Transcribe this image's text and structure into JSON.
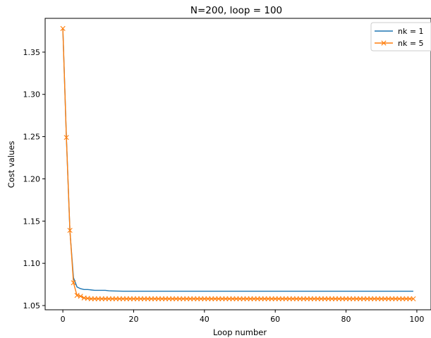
{
  "chart_data": {
    "type": "line",
    "title": "N=200, loop = 100",
    "xlabel": "Loop number",
    "ylabel": "Cost values",
    "xlim": [
      -5,
      104
    ],
    "ylim": [
      1.045,
      1.39
    ],
    "xticks": [
      0,
      20,
      40,
      60,
      80,
      100
    ],
    "xtick_labels": [
      "0",
      "20",
      "40",
      "60",
      "80",
      "100"
    ],
    "yticks": [
      1.05,
      1.1,
      1.15,
      1.2,
      1.25,
      1.3,
      1.35
    ],
    "ytick_labels": [
      "1.05",
      "1.10",
      "1.15",
      "1.20",
      "1.25",
      "1.30",
      "1.35"
    ],
    "grid": false,
    "legend_position": "top-right",
    "series": [
      {
        "name": "nk = 1",
        "color": "#1f77b4",
        "marker": "none",
        "x": [
          0,
          1,
          2,
          3,
          4,
          5,
          6,
          7,
          8,
          9,
          10,
          11,
          12,
          13,
          14,
          15,
          16,
          17,
          18,
          19,
          20,
          21,
          22,
          23,
          24,
          25,
          26,
          27,
          28,
          29,
          30,
          31,
          32,
          33,
          34,
          35,
          36,
          37,
          38,
          39,
          40,
          41,
          42,
          43,
          44,
          45,
          46,
          47,
          48,
          49,
          50,
          51,
          52,
          53,
          54,
          55,
          56,
          57,
          58,
          59,
          60,
          61,
          62,
          63,
          64,
          65,
          66,
          67,
          68,
          69,
          70,
          71,
          72,
          73,
          74,
          75,
          76,
          77,
          78,
          79,
          80,
          81,
          82,
          83,
          84,
          85,
          86,
          87,
          88,
          89,
          90,
          91,
          92,
          93,
          94,
          95,
          96,
          97,
          98,
          99
        ],
        "values": [
          1.378,
          1.249,
          1.138,
          1.083,
          1.072,
          1.07,
          1.069,
          1.069,
          1.0685,
          1.068,
          1.068,
          1.068,
          1.068,
          1.0675,
          1.0673,
          1.0672,
          1.0671,
          1.067,
          1.067,
          1.067,
          1.067,
          1.067,
          1.067,
          1.067,
          1.067,
          1.067,
          1.067,
          1.067,
          1.067,
          1.067,
          1.067,
          1.067,
          1.067,
          1.067,
          1.067,
          1.067,
          1.067,
          1.067,
          1.067,
          1.067,
          1.067,
          1.067,
          1.067,
          1.067,
          1.067,
          1.067,
          1.067,
          1.067,
          1.067,
          1.067,
          1.067,
          1.067,
          1.067,
          1.067,
          1.067,
          1.067,
          1.067,
          1.067,
          1.067,
          1.067,
          1.067,
          1.067,
          1.067,
          1.067,
          1.067,
          1.067,
          1.067,
          1.067,
          1.067,
          1.067,
          1.067,
          1.067,
          1.067,
          1.067,
          1.067,
          1.067,
          1.067,
          1.067,
          1.067,
          1.067,
          1.067,
          1.067,
          1.067,
          1.067,
          1.067,
          1.067,
          1.067,
          1.067,
          1.067,
          1.067,
          1.067,
          1.067,
          1.067,
          1.067,
          1.067,
          1.067,
          1.067,
          1.067,
          1.067,
          1.067
        ]
      },
      {
        "name": "nk = 5",
        "color": "#ff7f0e",
        "marker": "x",
        "x": [
          0,
          1,
          2,
          3,
          4,
          5,
          6,
          7,
          8,
          9,
          10,
          11,
          12,
          13,
          14,
          15,
          16,
          17,
          18,
          19,
          20,
          21,
          22,
          23,
          24,
          25,
          26,
          27,
          28,
          29,
          30,
          31,
          32,
          33,
          34,
          35,
          36,
          37,
          38,
          39,
          40,
          41,
          42,
          43,
          44,
          45,
          46,
          47,
          48,
          49,
          50,
          51,
          52,
          53,
          54,
          55,
          56,
          57,
          58,
          59,
          60,
          61,
          62,
          63,
          64,
          65,
          66,
          67,
          68,
          69,
          70,
          71,
          72,
          73,
          74,
          75,
          76,
          77,
          78,
          79,
          80,
          81,
          82,
          83,
          84,
          85,
          86,
          87,
          88,
          89,
          90,
          91,
          92,
          93,
          94,
          95,
          96,
          97,
          98,
          99
        ],
        "values": [
          1.378,
          1.249,
          1.139,
          1.077,
          1.062,
          1.061,
          1.059,
          1.0585,
          1.058,
          1.058,
          1.058,
          1.058,
          1.058,
          1.058,
          1.058,
          1.058,
          1.058,
          1.058,
          1.058,
          1.058,
          1.058,
          1.058,
          1.058,
          1.058,
          1.058,
          1.058,
          1.058,
          1.058,
          1.058,
          1.058,
          1.058,
          1.058,
          1.058,
          1.058,
          1.058,
          1.058,
          1.058,
          1.058,
          1.058,
          1.058,
          1.058,
          1.058,
          1.058,
          1.058,
          1.058,
          1.058,
          1.058,
          1.058,
          1.058,
          1.058,
          1.058,
          1.058,
          1.058,
          1.058,
          1.058,
          1.058,
          1.058,
          1.058,
          1.058,
          1.058,
          1.058,
          1.058,
          1.058,
          1.058,
          1.058,
          1.058,
          1.058,
          1.058,
          1.058,
          1.058,
          1.058,
          1.058,
          1.058,
          1.058,
          1.058,
          1.058,
          1.058,
          1.058,
          1.058,
          1.058,
          1.058,
          1.058,
          1.058,
          1.058,
          1.058,
          1.058,
          1.058,
          1.058,
          1.058,
          1.058,
          1.058,
          1.058,
          1.058,
          1.058,
          1.058,
          1.058,
          1.058,
          1.058,
          1.058,
          1.058
        ]
      }
    ]
  }
}
